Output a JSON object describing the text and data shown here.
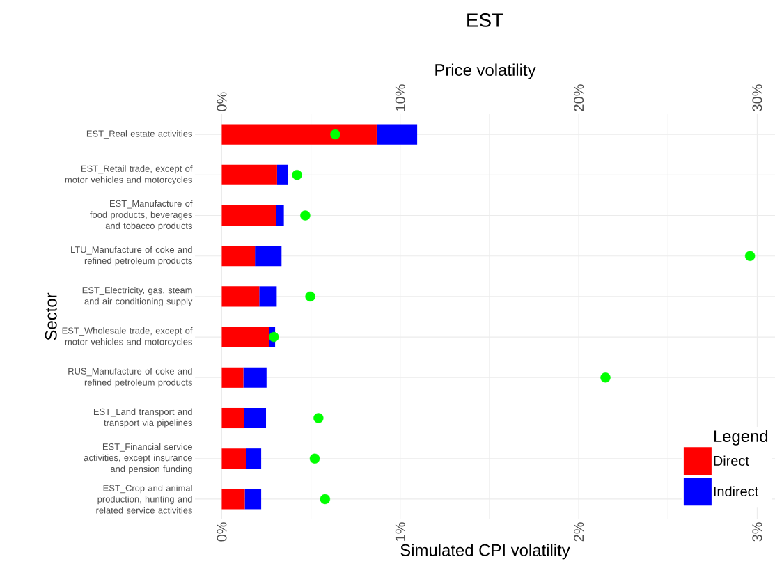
{
  "chart_data": {
    "type": "bar",
    "orientation": "horizontal",
    "stacked": true,
    "title": "EST",
    "xlabel": "Simulated CPI volatility",
    "x2label": "Price volatility",
    "ylabel": "Sector",
    "legend_title": "Legend",
    "legend": "bottom right",
    "grid": true,
    "categories": [
      "EST_Real estate activities",
      "EST_Retail trade, except of motor vehicles and motorcycles",
      "EST_Manufacture of food products, beverages and tobacco products",
      "LTU_Manufacture of coke and refined petroleum products",
      "EST_Electricity, gas, steam and air conditioning supply",
      "EST_Wholesale trade, except of motor vehicles and motorcycles",
      "RUS_Manufacture of coke and refined petroleum products",
      "EST_Land transport and transport via pipelines",
      "EST_Financial service activities, except insurance and pension funding",
      "EST_Crop and animal production, hunting and related service activities"
    ],
    "xlim": [
      -0.15,
      3.1
    ],
    "xticks": [
      {
        "value": 0,
        "label": "0%"
      },
      {
        "value": 0.5,
        "label": null
      },
      {
        "value": 1,
        "label": "1%"
      },
      {
        "value": 1.5,
        "label": null
      },
      {
        "value": 2,
        "label": "2%"
      },
      {
        "value": 2.5,
        "label": null
      },
      {
        "value": 3,
        "label": "3%"
      }
    ],
    "x2lim": [
      -1.5,
      31
    ],
    "x2ticks": [
      {
        "value": 0,
        "label": "0%"
      },
      {
        "value": 10,
        "label": "10%"
      },
      {
        "value": 20,
        "label": "20%"
      },
      {
        "value": 30,
        "label": "30%"
      }
    ],
    "series": [
      {
        "name": "Direct",
        "color": "#ff0000",
        "values": [
          0.868,
          0.31,
          0.303,
          0.186,
          0.21,
          0.264,
          0.121,
          0.123,
          0.135,
          0.129
        ]
      },
      {
        "name": "Indirect",
        "color": "#0000ff",
        "values": [
          0.227,
          0.06,
          0.045,
          0.149,
          0.098,
          0.035,
          0.13,
          0.125,
          0.086,
          0.092
        ]
      },
      {
        "type": "scatter",
        "axis": "x2",
        "color": "#00ff00",
        "marker": "circle",
        "values": [
          6.36,
          4.22,
          4.68,
          29.6,
          4.96,
          2.92,
          21.5,
          5.42,
          5.21,
          5.79
        ]
      }
    ]
  }
}
